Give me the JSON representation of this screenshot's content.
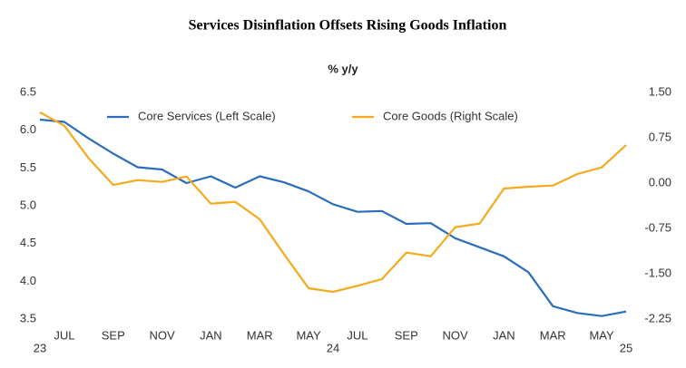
{
  "chart_data": {
    "type": "line",
    "title": "Services Disinflation Offsets Rising Goods Inflation",
    "subtitle": "% y/y",
    "categories": [
      null,
      "JUL",
      null,
      "SEP",
      null,
      "NOV",
      null,
      "JAN",
      null,
      "MAR",
      null,
      "MAY",
      null,
      "JUL",
      null,
      "SEP",
      null,
      "NOV",
      null,
      "JAN",
      null,
      "MAR",
      null,
      "MAY",
      null
    ],
    "category_years": [
      "23",
      null,
      null,
      null,
      null,
      null,
      null,
      null,
      null,
      null,
      null,
      null,
      "24",
      null,
      null,
      null,
      null,
      null,
      null,
      null,
      null,
      null,
      null,
      null,
      "25"
    ],
    "series": [
      {
        "name": "Core Services (Left Scale)",
        "color": "#2a6ebb",
        "axis": "y",
        "values": [
          6.14,
          6.11,
          5.89,
          5.69,
          5.51,
          5.48,
          5.3,
          5.39,
          5.24,
          5.39,
          5.31,
          5.19,
          5.02,
          4.92,
          4.93,
          4.76,
          4.77,
          4.57,
          4.45,
          4.33,
          4.12,
          3.67,
          3.58,
          3.54,
          3.6
        ]
      },
      {
        "name": "Core Goods (Right Scale)",
        "color": "#f5aa1c",
        "axis": "y2",
        "values": [
          1.17,
          0.95,
          0.41,
          -0.03,
          0.05,
          0.02,
          0.11,
          -0.34,
          -0.31,
          -0.6,
          -1.18,
          -1.74,
          -1.8,
          -1.7,
          -1.59,
          -1.15,
          -1.21,
          -0.73,
          -0.67,
          -0.09,
          -0.06,
          -0.04,
          0.15,
          0.26,
          0.63
        ]
      }
    ],
    "ylim": [
      3.5,
      6.5
    ],
    "yticks": [
      6.5,
      {
        "value": 6.0,
        "label": "6.0"
      },
      5.5,
      {
        "value": 5.0,
        "label": "5.0"
      },
      4.5,
      {
        "value": 4.0,
        "label": "4.0"
      },
      3.5
    ],
    "y2lim": [
      -2.25,
      1.5
    ],
    "y2ticks": [
      {
        "value": 1.5,
        "label": "1.50"
      },
      0.75,
      {
        "value": 0,
        "label": "0.00"
      },
      -0.75,
      {
        "value": -1.5,
        "label": "-1.50"
      },
      -2.25
    ],
    "grid": false,
    "legend": "top"
  }
}
